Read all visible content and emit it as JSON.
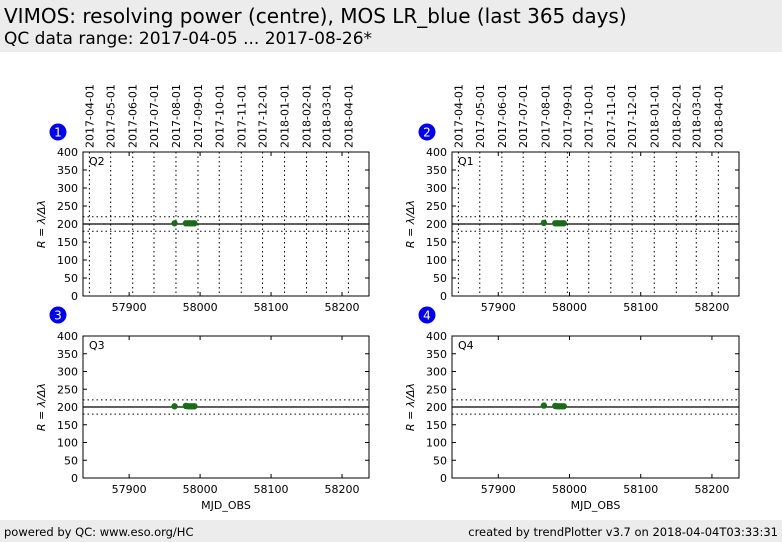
{
  "header": {
    "title": "VIMOS: resolving power (centre), MOS LR_blue (last 365 days)",
    "subtitle": "QC data range: 2017-04-05 ... 2017-08-26*"
  },
  "footer": {
    "left": "powered by QC: www.eso.org/HC",
    "right": "created by trendPlotter v3.7 on 2018-04-04T03:33:31"
  },
  "colors": {
    "point": "#1a6b1a",
    "badge": "#0000ee",
    "header_bg": "#ececec"
  },
  "chart_data": [
    {
      "type": "scatter",
      "badge": "1",
      "panel_label": "Q2",
      "xlabel": "",
      "ylabel": "R = λ/Δλ",
      "xlim": [
        57835,
        58238
      ],
      "ylim": [
        0,
        400
      ],
      "x_ticks": [
        57900,
        58000,
        58100,
        58200
      ],
      "y_ticks": [
        0,
        50,
        100,
        150,
        200,
        250,
        300,
        350,
        400
      ],
      "date_ticks": [
        [
          "2017-04-01",
          57844
        ],
        [
          "2017-05-01",
          57874
        ],
        [
          "2017-06-01",
          57905
        ],
        [
          "2017-07-01",
          57935
        ],
        [
          "2017-08-01",
          57966
        ],
        [
          "2017-09-01",
          57997
        ],
        [
          "2017-10-01",
          58027
        ],
        [
          "2017-11-01",
          58058
        ],
        [
          "2017-12-01",
          58088
        ],
        [
          "2018-01-01",
          58119
        ],
        [
          "2018-02-01",
          58150
        ],
        [
          "2018-03-01",
          58178
        ],
        [
          "2018-04-01",
          58209
        ]
      ],
      "reference": 200,
      "threshold_lines": [
        180,
        220
      ],
      "points": [
        [
          57964,
          202
        ],
        [
          57980,
          202
        ],
        [
          57983,
          202
        ],
        [
          57986,
          202
        ],
        [
          57989,
          202
        ],
        [
          57992,
          202
        ]
      ]
    },
    {
      "type": "scatter",
      "badge": "2",
      "panel_label": "Q1",
      "xlabel": "",
      "ylabel": "R = λ/Δλ",
      "xlim": [
        57835,
        58238
      ],
      "ylim": [
        0,
        400
      ],
      "x_ticks": [
        57900,
        58000,
        58100,
        58200
      ],
      "y_ticks": [
        0,
        50,
        100,
        150,
        200,
        250,
        300,
        350,
        400
      ],
      "date_ticks": [
        [
          "2017-04-01",
          57844
        ],
        [
          "2017-05-01",
          57874
        ],
        [
          "2017-06-01",
          57905
        ],
        [
          "2017-07-01",
          57935
        ],
        [
          "2017-08-01",
          57966
        ],
        [
          "2017-09-01",
          57997
        ],
        [
          "2017-10-01",
          58027
        ],
        [
          "2017-11-01",
          58058
        ],
        [
          "2017-12-01",
          58088
        ],
        [
          "2018-01-01",
          58119
        ],
        [
          "2018-02-01",
          58150
        ],
        [
          "2018-03-01",
          58178
        ],
        [
          "2018-04-01",
          58209
        ]
      ],
      "reference": 200,
      "threshold_lines": [
        180,
        220
      ],
      "points": [
        [
          57964,
          203
        ],
        [
          57980,
          202
        ],
        [
          57983,
          202
        ],
        [
          57986,
          202
        ],
        [
          57989,
          202
        ],
        [
          57992,
          202
        ]
      ]
    },
    {
      "type": "scatter",
      "badge": "3",
      "panel_label": "Q3",
      "xlabel": "MJD_OBS",
      "ylabel": "R = λ/Δλ",
      "xlim": [
        57835,
        58238
      ],
      "ylim": [
        0,
        400
      ],
      "x_ticks": [
        57900,
        58000,
        58100,
        58200
      ],
      "y_ticks": [
        0,
        50,
        100,
        150,
        200,
        250,
        300,
        350,
        400
      ],
      "date_ticks": [],
      "reference": 200,
      "threshold_lines": [
        180,
        220
      ],
      "points": [
        [
          57964,
          202
        ],
        [
          57980,
          203
        ],
        [
          57983,
          202
        ],
        [
          57986,
          202
        ],
        [
          57989,
          202
        ],
        [
          57992,
          202
        ]
      ]
    },
    {
      "type": "scatter",
      "badge": "4",
      "panel_label": "Q4",
      "xlabel": "MJD_OBS",
      "ylabel": "R = λ/Δλ",
      "xlim": [
        57835,
        58238
      ],
      "ylim": [
        0,
        400
      ],
      "x_ticks": [
        57900,
        58000,
        58100,
        58200
      ],
      "y_ticks": [
        0,
        50,
        100,
        150,
        200,
        250,
        300,
        350,
        400
      ],
      "date_ticks": [],
      "reference": 200,
      "threshold_lines": [
        180,
        220
      ],
      "points": [
        [
          57964,
          204
        ],
        [
          57980,
          203
        ],
        [
          57983,
          202
        ],
        [
          57986,
          202
        ],
        [
          57989,
          202
        ],
        [
          57992,
          202
        ]
      ]
    }
  ]
}
